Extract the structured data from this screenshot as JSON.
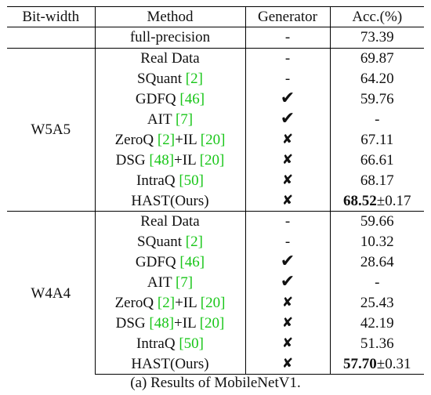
{
  "table": {
    "headers": {
      "bit_width": "Bit-width",
      "method": "Method",
      "generator": "Generator",
      "acc": "Acc.(%)"
    },
    "full_precision": {
      "method": "full-precision",
      "generator": "-",
      "acc": "73.39"
    },
    "groups": [
      {
        "bit_width": "W5A5",
        "rows": [
          {
            "pre": "Real Data",
            "generator": "-",
            "acc": "69.87"
          },
          {
            "pre": "SQuant ",
            "c1": "[2]",
            "generator": "-",
            "acc": "64.20"
          },
          {
            "pre": "GDFQ ",
            "c1": "[46]",
            "generator": "✔",
            "acc": "59.76"
          },
          {
            "pre": "AIT ",
            "c1": "[7]",
            "generator": "✔",
            "acc": "-"
          },
          {
            "pre": "ZeroQ ",
            "c1": "[2]",
            "mid": "+IL ",
            "c2": "[20]",
            "generator": "✘",
            "acc": "67.11"
          },
          {
            "pre": "DSG ",
            "c1": "[48]",
            "mid": "+IL ",
            "c2": "[20]",
            "generator": "✘",
            "acc": "66.61"
          },
          {
            "pre": "IntraQ ",
            "c1": "[50]",
            "generator": "✘",
            "acc": "68.17"
          },
          {
            "pre": "HAST(Ours)",
            "generator": "✘",
            "acc_bold": "68.52",
            "acc_rest": "±0.17"
          }
        ]
      },
      {
        "bit_width": "W4A4",
        "rows": [
          {
            "pre": "Real Data",
            "generator": "-",
            "acc": "59.66"
          },
          {
            "pre": "SQuant ",
            "c1": "[2]",
            "generator": "-",
            "acc": "10.32"
          },
          {
            "pre": "GDFQ ",
            "c1": "[46]",
            "generator": "✔",
            "acc": "28.64"
          },
          {
            "pre": "AIT ",
            "c1": "[7]",
            "generator": "✔",
            "acc": "-"
          },
          {
            "pre": "ZeroQ ",
            "c1": "[2]",
            "mid": "+IL ",
            "c2": "[20]",
            "generator": "✘",
            "acc": "25.43"
          },
          {
            "pre": "DSG ",
            "c1": "[48]",
            "mid": "+IL ",
            "c2": "[20]",
            "generator": "✘",
            "acc": "42.19"
          },
          {
            "pre": "IntraQ ",
            "c1": "[50]",
            "generator": "✘",
            "acc": "51.36"
          },
          {
            "pre": "HAST(Ours)",
            "generator": "✘",
            "acc_bold": "57.70",
            "acc_rest": "±0.31"
          }
        ]
      }
    ]
  },
  "caption": "(a) Results of MobileNetV1.",
  "colors": {
    "citation": "#18c618"
  }
}
